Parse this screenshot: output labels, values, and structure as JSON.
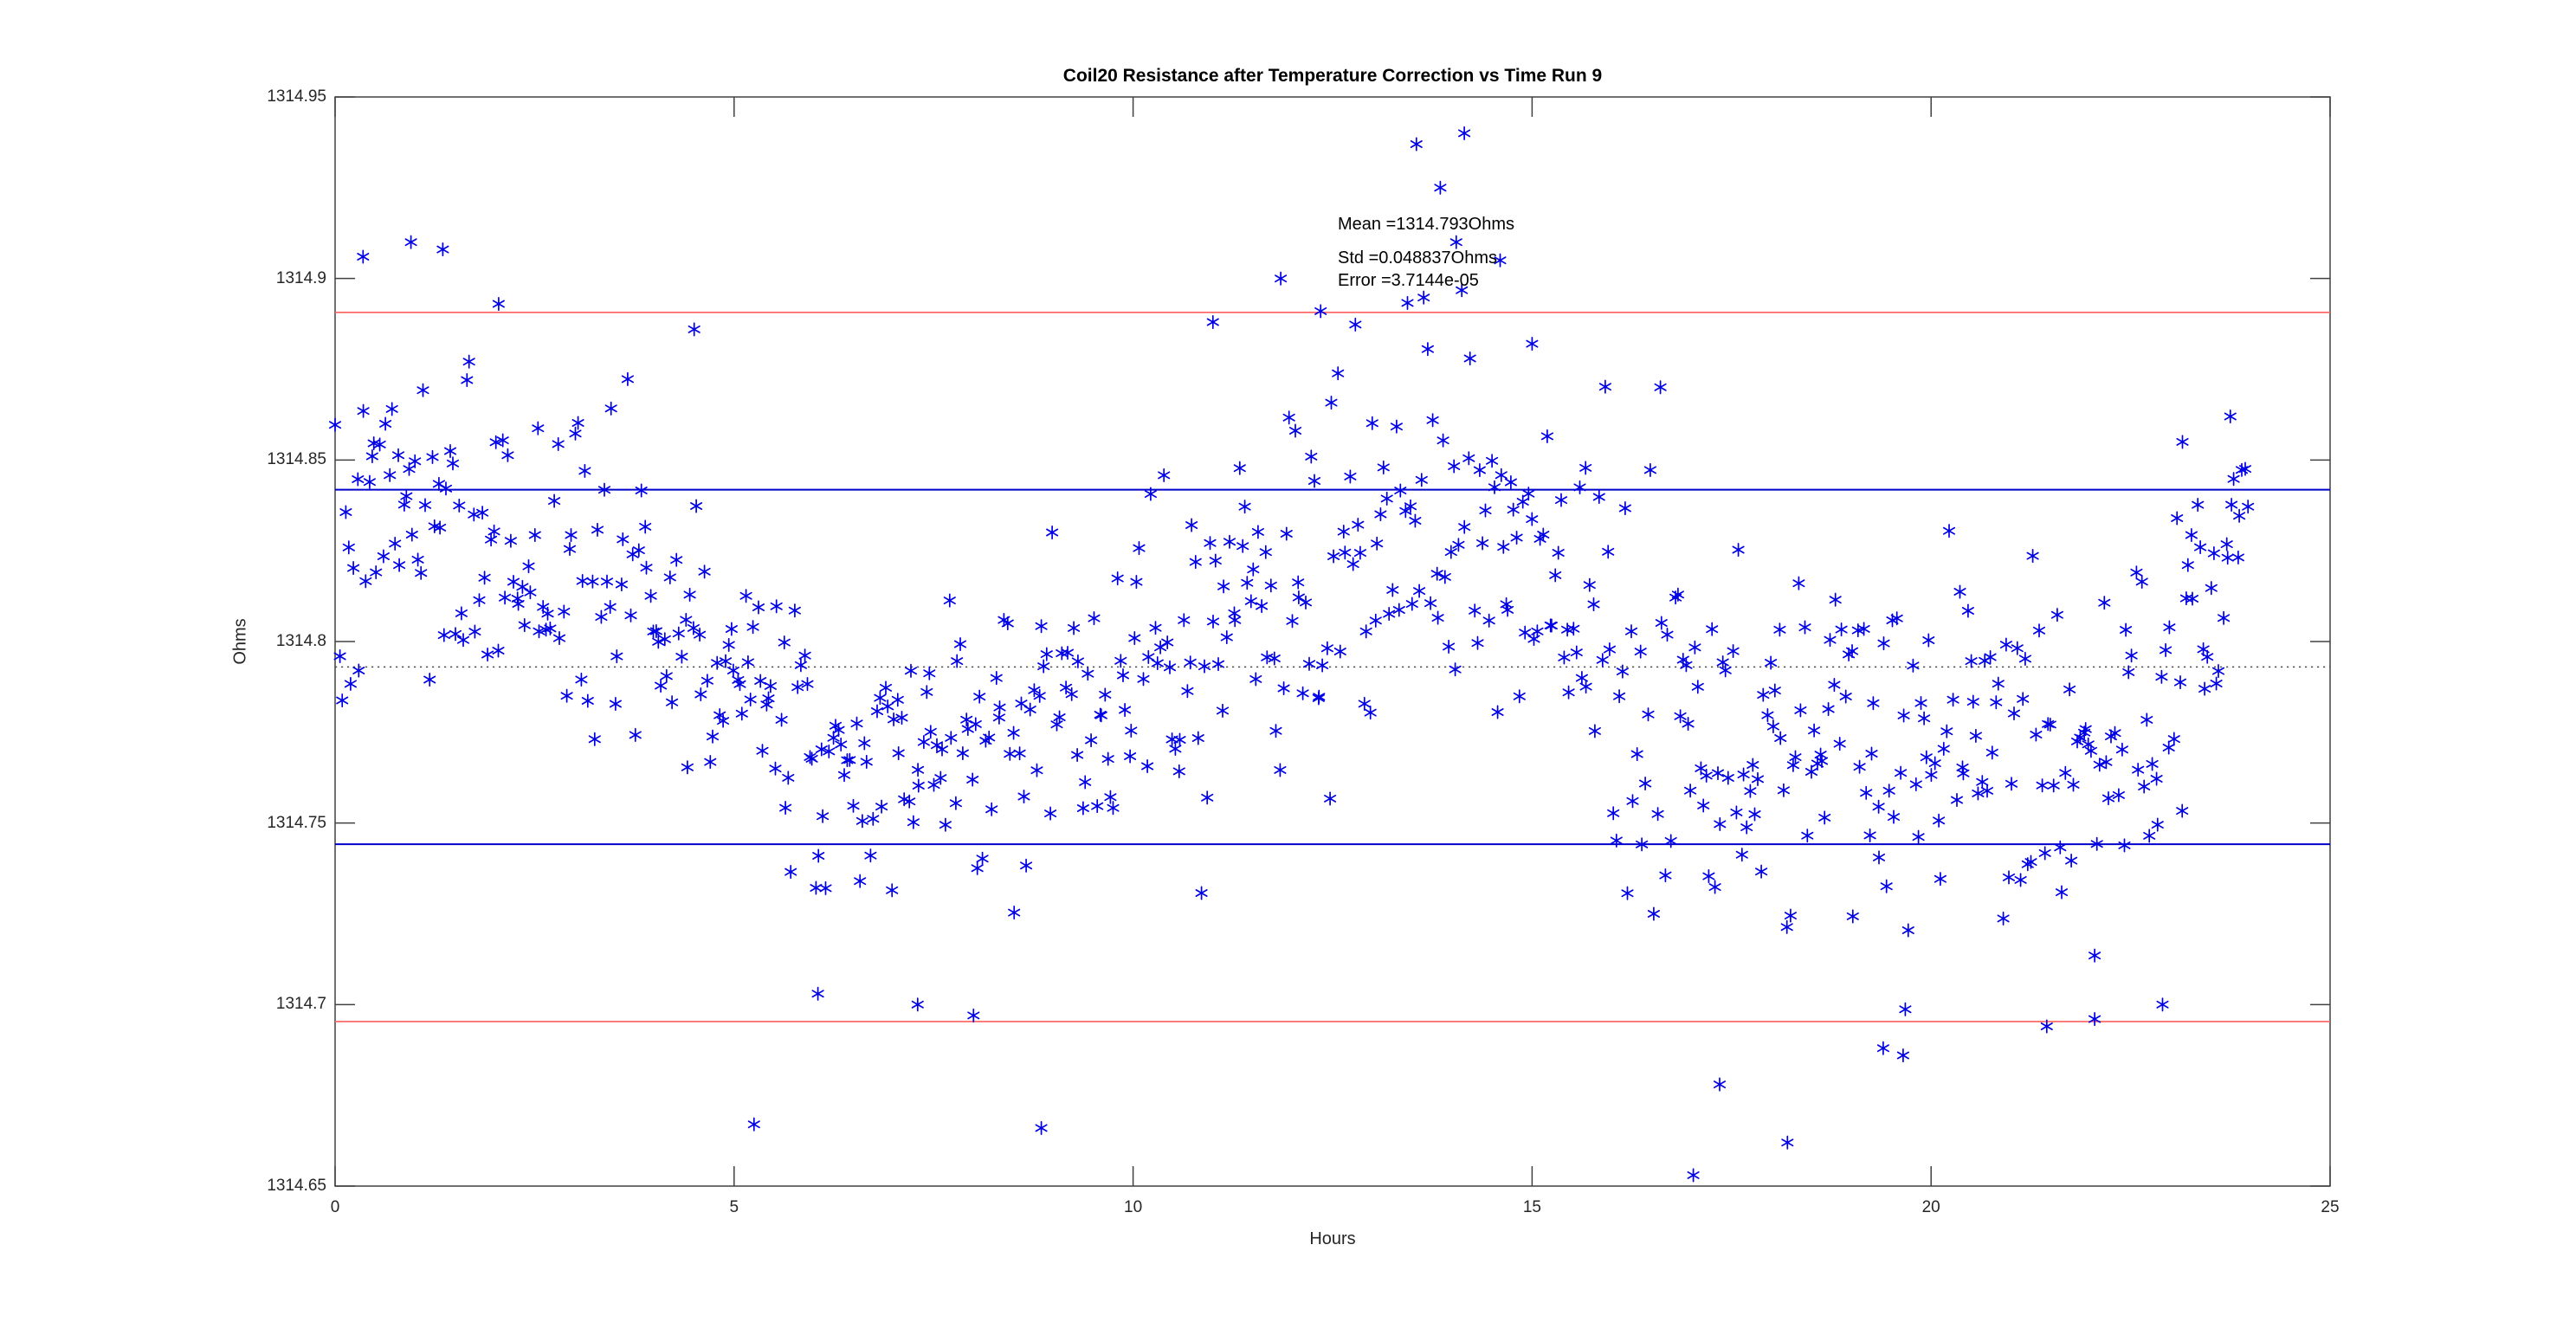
{
  "figure": {
    "title": "Coil20 Resistance after Temperature Correction vs Time Run 9",
    "background": "#ffffff"
  },
  "axes": {
    "x": {
      "label": "Hours",
      "min": 0,
      "max": 25,
      "tick_values": [
        0,
        5,
        10,
        15,
        20,
        25
      ],
      "tick_labels": [
        "0",
        "5",
        "10",
        "15",
        "20",
        "25"
      ]
    },
    "y": {
      "label": "Ohms",
      "min": 1314.65,
      "max": 1314.95,
      "tick_values": [
        1314.65,
        1314.7,
        1314.75,
        1314.8,
        1314.85,
        1314.9,
        1314.95
      ],
      "tick_labels": [
        "1314.65",
        "1314.7",
        "1314.75",
        "1314.8",
        "1314.85",
        "1314.9",
        "1314.95"
      ]
    }
  },
  "annotation": {
    "mean": "Mean =1314.793Ohms",
    "std": "Std =0.048837Ohms",
    "error": "Error =3.7144e-05"
  },
  "stats": {
    "mean_ohms": 1314.793,
    "std_ohms": 0.048837,
    "error_ohms": 3.7144e-05
  },
  "colors": {
    "marker": "#0000e6",
    "sigma_line": "#0000cc",
    "two_sigma_line": "#ff5f5f",
    "mean_line": "#4d4d4d",
    "axis_box": "#404040",
    "text": "#262626"
  },
  "chart_data": {
    "type": "scatter",
    "title": "Coil20 Resistance after Temperature Correction vs Time Run 9",
    "xlabel": "Hours",
    "ylabel": "Ohms",
    "xlim": [
      0,
      25
    ],
    "ylim": [
      1314.65,
      1314.95
    ],
    "grid": false,
    "legend": false,
    "marker": "blue-asterisk",
    "n_points_approx": 700,
    "stat_lines": [
      {
        "name": "mean-plus-2sd-line",
        "value": 1314.890674,
        "style": "solid",
        "color": "#ff5f5f",
        "width": 1.6
      },
      {
        "name": "mean-plus-1sd-line",
        "value": 1314.841837,
        "style": "solid",
        "color": "#0000cc",
        "width": 2
      },
      {
        "name": "mean-line",
        "value": 1314.793,
        "style": "dotted",
        "color": "#4d4d4d",
        "width": 1.5
      },
      {
        "name": "mean-minus-1sd-line",
        "value": 1314.744163,
        "style": "solid",
        "color": "#0000cc",
        "width": 2
      },
      {
        "name": "mean-minus-2sd-line",
        "value": 1314.695326,
        "style": "solid",
        "color": "#ff5f5f",
        "width": 1.6
      }
    ],
    "feature_points": [
      [
        0.35,
        1314.906
      ],
      [
        0.95,
        1314.91
      ],
      [
        1.35,
        1314.908
      ],
      [
        2.05,
        1314.893
      ],
      [
        4.5,
        1314.886
      ],
      [
        5.25,
        1314.667
      ],
      [
        6.05,
        1314.703
      ],
      [
        7.3,
        1314.7
      ],
      [
        8.0,
        1314.697
      ],
      [
        8.85,
        1314.666
      ],
      [
        11.0,
        1314.888
      ],
      [
        11.85,
        1314.9
      ],
      [
        12.35,
        1314.891
      ],
      [
        13.55,
        1314.937
      ],
      [
        13.85,
        1314.925
      ],
      [
        14.05,
        1314.91
      ],
      [
        14.15,
        1314.94
      ],
      [
        14.6,
        1314.905
      ],
      [
        15.0,
        1314.882
      ],
      [
        17.02,
        1314.653
      ],
      [
        17.35,
        1314.678
      ],
      [
        18.2,
        1314.662
      ],
      [
        19.4,
        1314.688
      ],
      [
        19.65,
        1314.686
      ],
      [
        21.45,
        1314.694
      ],
      [
        22.05,
        1314.696
      ],
      [
        22.9,
        1314.7
      ],
      [
        23.15,
        1314.855
      ],
      [
        23.75,
        1314.862
      ]
    ],
    "generator": {
      "method": "seeded-gaussian-around-trend (approximation of the ~700 plotted samples)",
      "seed": 7,
      "n": 660,
      "x_max": 24.0,
      "mean": 1314.793,
      "clamp": [
        1314.655,
        1314.935
      ],
      "trend_control_points": [
        [
          0,
          0.02
        ],
        [
          0.7,
          0.042
        ],
        [
          1.6,
          0.04
        ],
        [
          2.6,
          0.028
        ],
        [
          3.6,
          0.025
        ],
        [
          4.6,
          0.005
        ],
        [
          5.6,
          -0.012
        ],
        [
          6.6,
          -0.028
        ],
        [
          7.6,
          -0.026
        ],
        [
          8.6,
          -0.012
        ],
        [
          9.6,
          -0.008
        ],
        [
          10.6,
          0.012
        ],
        [
          11.6,
          0.016
        ],
        [
          12.6,
          0.022
        ],
        [
          13.6,
          0.048
        ],
        [
          14.3,
          0.05
        ],
        [
          15.1,
          0.028
        ],
        [
          16.0,
          -0.005
        ],
        [
          17.0,
          -0.028
        ],
        [
          18.0,
          -0.018
        ],
        [
          19.0,
          -0.025
        ],
        [
          19.8,
          -0.03
        ],
        [
          20.8,
          -0.022
        ],
        [
          21.8,
          -0.032
        ],
        [
          22.6,
          -0.012
        ],
        [
          23.4,
          0.02
        ],
        [
          24.0,
          0.038
        ]
      ],
      "sd_control_points": [
        [
          0,
          0.02
        ],
        [
          3,
          0.022
        ],
        [
          6,
          0.02
        ],
        [
          9,
          0.022
        ],
        [
          12,
          0.024
        ],
        [
          13.5,
          0.03
        ],
        [
          15,
          0.028
        ],
        [
          17,
          0.027
        ],
        [
          19,
          0.026
        ],
        [
          21,
          0.024
        ],
        [
          23,
          0.022
        ],
        [
          24,
          0.02
        ]
      ]
    }
  }
}
